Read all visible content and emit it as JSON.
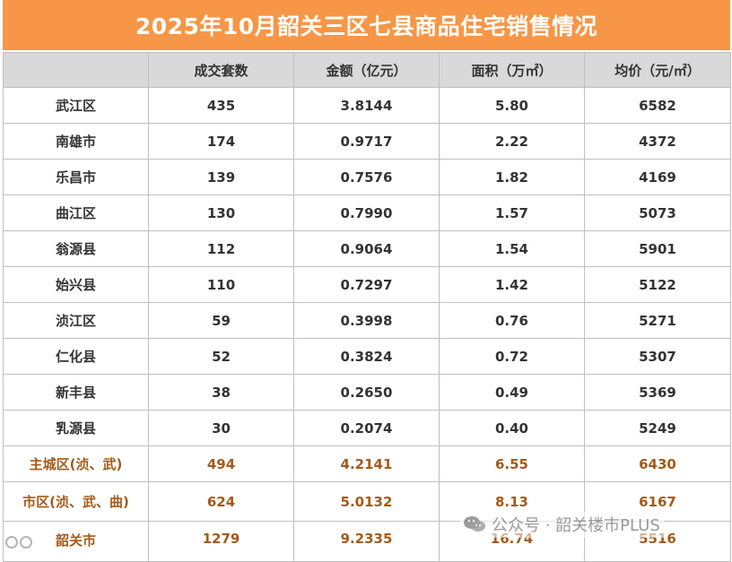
{
  "title": "2025年10月韶关三区七县商品住宅销售情况",
  "columns": [
    "",
    "成交套数",
    "金额（亿元）",
    "面积（万㎡）",
    "均价（元/㎡）"
  ],
  "rows": [
    {
      "region": "武江区",
      "units": "435",
      "amount": "3.8144",
      "area": "5.80",
      "price": "6582"
    },
    {
      "region": "南雄市",
      "units": "174",
      "amount": "0.9717",
      "area": "2.22",
      "price": "4372"
    },
    {
      "region": "乐昌市",
      "units": "139",
      "amount": "0.7576",
      "area": "1.82",
      "price": "4169"
    },
    {
      "region": "曲江区",
      "units": "130",
      "amount": "0.7990",
      "area": "1.57",
      "price": "5073"
    },
    {
      "region": "翁源县",
      "units": "112",
      "amount": "0.9064",
      "area": "1.54",
      "price": "5901"
    },
    {
      "region": "始兴县",
      "units": "110",
      "amount": "0.7297",
      "area": "1.42",
      "price": "5122"
    },
    {
      "region": "浈江区",
      "units": "59",
      "amount": "0.3998",
      "area": "0.76",
      "price": "5271"
    },
    {
      "region": "仁化县",
      "units": "52",
      "amount": "0.3824",
      "area": "0.72",
      "price": "5307"
    },
    {
      "region": "新丰县",
      "units": "38",
      "amount": "0.2650",
      "area": "0.49",
      "price": "5369"
    },
    {
      "region": "乳源县",
      "units": "30",
      "amount": "0.2074",
      "area": "0.40",
      "price": "5249"
    }
  ],
  "summary": [
    {
      "region": "主城区(浈、武)",
      "units": "494",
      "amount": "4.2141",
      "area": "6.55",
      "price": "6430"
    },
    {
      "region": "市区(浈、武、曲)",
      "units": "624",
      "amount": "5.0132",
      "area": "8.13",
      "price": "6167"
    },
    {
      "region": "韶关市",
      "units": "1279",
      "amount": "9.2335",
      "area": "16.74",
      "price": "5516"
    }
  ],
  "watermark": {
    "text": "公众号 · 韶关楼市PLUS",
    "icon": "wechat-icon"
  },
  "colors": {
    "title_bg": "#f79646",
    "header_bg": "#d9d9d9",
    "summary_text": "#a55a1a"
  }
}
